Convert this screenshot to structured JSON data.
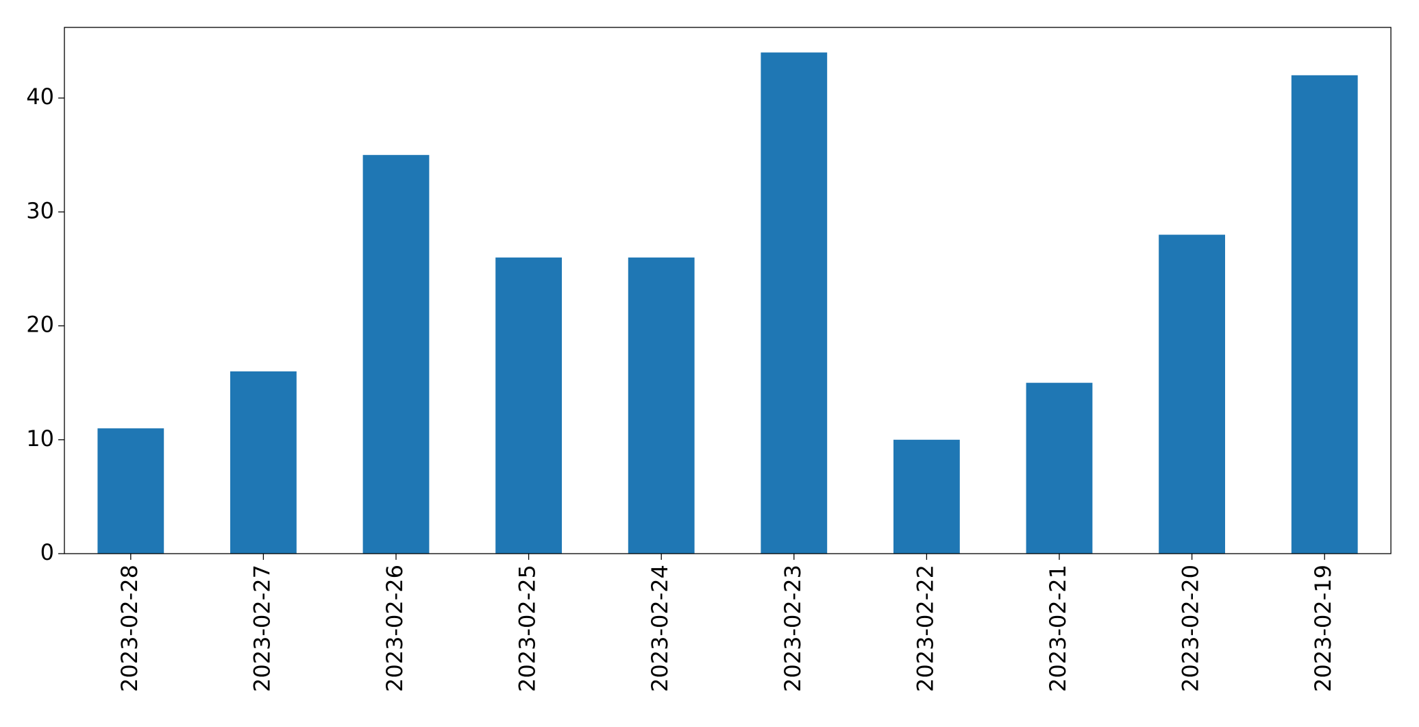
{
  "chart_data": {
    "type": "bar",
    "categories": [
      "2023-02-28",
      "2023-02-27",
      "2023-02-26",
      "2023-02-25",
      "2023-02-24",
      "2023-02-23",
      "2023-02-22",
      "2023-02-21",
      "2023-02-20",
      "2023-02-19"
    ],
    "values": [
      11,
      16,
      35,
      26,
      26,
      44,
      10,
      15,
      28,
      42
    ],
    "color": "#1f77b4",
    "ylim": [
      0,
      46.2
    ],
    "yticks": [
      0,
      10,
      20,
      30,
      40
    ],
    "grid": false
  }
}
